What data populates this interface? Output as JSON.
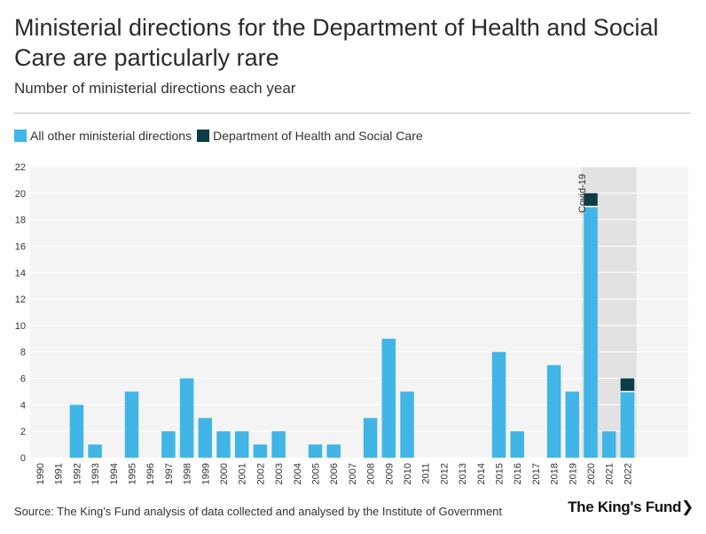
{
  "title": "Ministerial directions for the Department of Health and Social Care are particularly rare",
  "subtitle": "Number of ministerial directions each year",
  "source": "Source: The King's Fund analysis of data collected and analysed by the Institute of Government",
  "logo": "The King's Fund❯",
  "colors": {
    "other": "#41b6e6",
    "dhsc": "#0b3c47",
    "background": "#f4f4f4",
    "highlight": "#e2e2e2",
    "grid": "#ffffff"
  },
  "chart_data": {
    "type": "bar",
    "stacked": true,
    "categories": [
      "1990",
      "1991",
      "1992",
      "1993",
      "1994",
      "1995",
      "1996",
      "1997",
      "1998",
      "1999",
      "2000",
      "2001",
      "2002",
      "2003",
      "2004",
      "2005",
      "2006",
      "2007",
      "2008",
      "2009",
      "2010",
      "2011",
      "2012",
      "2013",
      "2014",
      "2015",
      "2016",
      "2017",
      "2018",
      "2019",
      "2020",
      "2021",
      "2022"
    ],
    "series": [
      {
        "name": "All other ministerial directions",
        "values": [
          0,
          0,
          4,
          1,
          0,
          5,
          0,
          2,
          6,
          3,
          2,
          2,
          1,
          2,
          0,
          1,
          1,
          0,
          3,
          9,
          5,
          0,
          0,
          0,
          0,
          8,
          2,
          0,
          7,
          5,
          19,
          2,
          5
        ]
      },
      {
        "name": "Department of Health and Social Care",
        "values": [
          0,
          0,
          0,
          0,
          0,
          0,
          0,
          0,
          0,
          0,
          0,
          0,
          0,
          0,
          0,
          0,
          0,
          0,
          0,
          0,
          0,
          0,
          0,
          0,
          0,
          0,
          0,
          0,
          0,
          0,
          1,
          0,
          1
        ]
      }
    ],
    "ylim": [
      0,
      22
    ],
    "yticks": [
      0,
      2,
      4,
      6,
      8,
      10,
      12,
      14,
      16,
      18,
      20,
      22
    ],
    "grid": true,
    "legend": "top-left",
    "highlight": {
      "from": "2020",
      "to": "2022",
      "label": "Covid-19"
    }
  }
}
